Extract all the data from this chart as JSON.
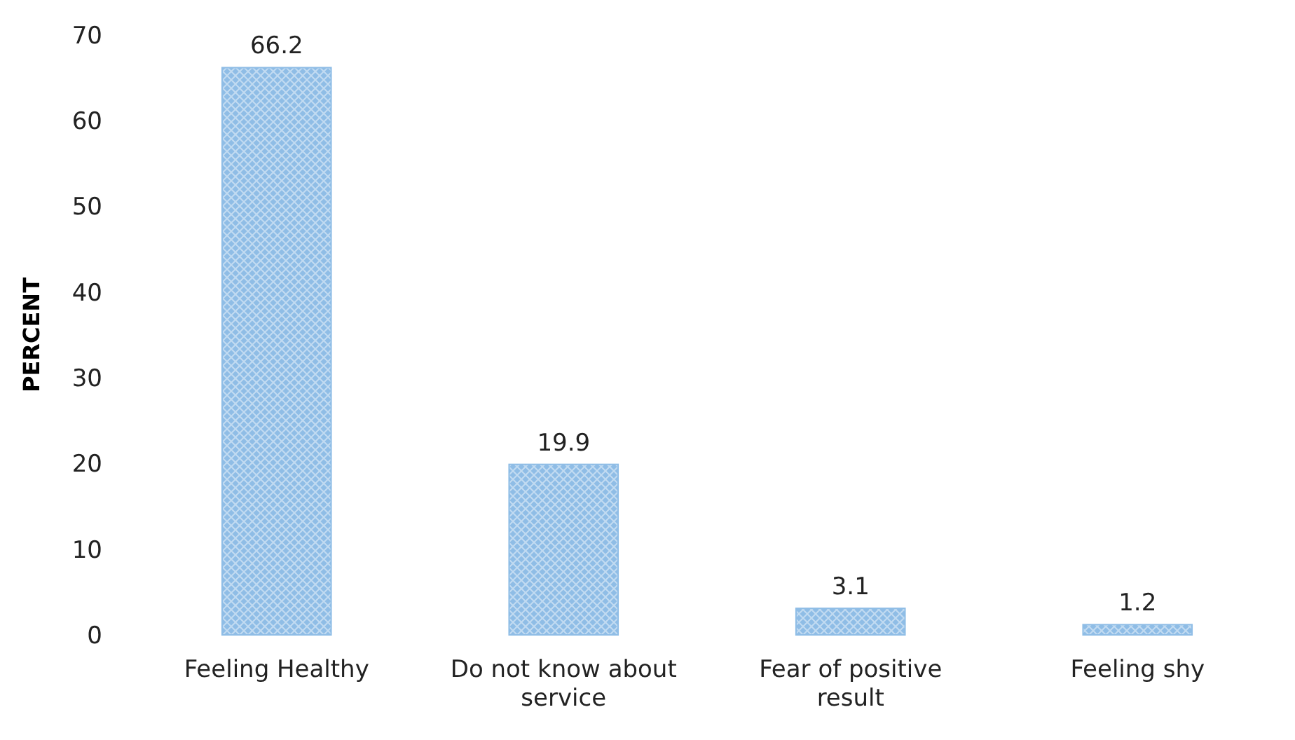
{
  "chart_data": {
    "type": "bar",
    "ylabel": "PERCENT",
    "categories": [
      "Feeling Healthy",
      "Do not know about service",
      "Fear of positive result",
      "Feeling shy"
    ],
    "values": [
      66.2,
      19.9,
      3.1,
      1.2
    ],
    "color": "#8fbde6",
    "ylim": [
      0,
      70
    ],
    "yticks": [
      0,
      10,
      20,
      30,
      40,
      50,
      60,
      70
    ],
    "data_labels": true
  }
}
